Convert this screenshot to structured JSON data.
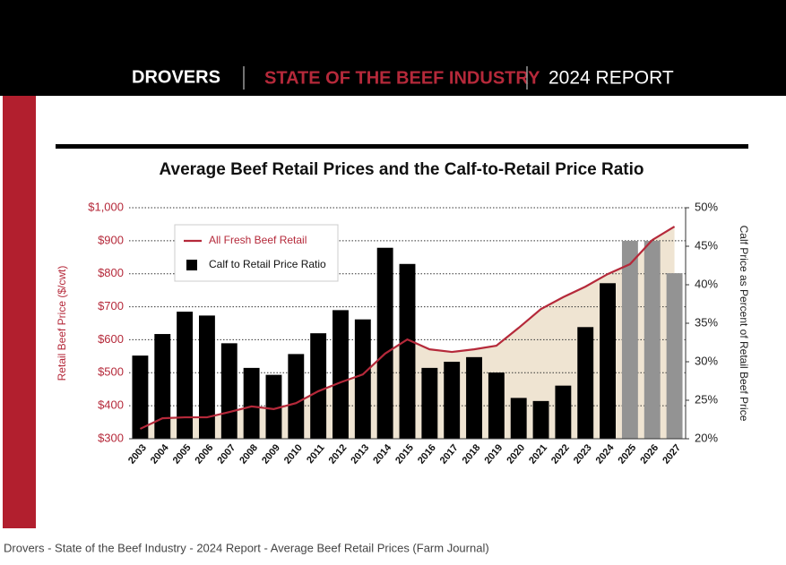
{
  "header": {
    "logo": "DROVERS",
    "section": "STATE OF THE BEEF INDUSTRY",
    "report": "2024 REPORT"
  },
  "caption": "Drovers - State of the Beef Industry - 2024 Report - Average Beef Retail Prices (Farm Journal)",
  "chart_data": {
    "type": "bar-line",
    "title": "Average Beef Retail Prices and the Calf-to-Retail Price Ratio",
    "y_label": "Retail Beef Price ($/cwt)",
    "y2_label": "Calf Price as Percent of Retail Beef Price",
    "categories": [
      "2003",
      "2004",
      "2005",
      "2006",
      "2007",
      "2008",
      "2009",
      "2010",
      "2011",
      "2012",
      "2013",
      "2014",
      "2015",
      "2016",
      "2017",
      "2018",
      "2019",
      "2020",
      "2021",
      "2022",
      "2023",
      "2024",
      "2025",
      "2026",
      "2027"
    ],
    "series": [
      {
        "name": "All Fresh Beef Retail",
        "type": "line",
        "axis": "y",
        "color": "#b5293a",
        "area_color": "#efe4d2",
        "values": [
          330,
          362,
          365,
          365,
          381,
          398,
          390,
          408,
          444,
          471,
          495,
          558,
          601,
          571,
          563,
          571,
          582,
          636,
          693,
          729,
          761,
          799,
          829,
          902,
          943
        ]
      },
      {
        "name": "Calf to Retail Price Ratio",
        "type": "bar",
        "axis": "y2",
        "color": "#000000",
        "colors": [
          "#000000",
          "#000000",
          "#000000",
          "#000000",
          "#000000",
          "#000000",
          "#000000",
          "#000000",
          "#000000",
          "#000000",
          "#000000",
          "#000000",
          "#000000",
          "#000000",
          "#000000",
          "#000000",
          "#000000",
          "#000000",
          "#000000",
          "#000000",
          "#000000",
          "#000000",
          "#939393",
          "#939393",
          "#939393"
        ],
        "values": [
          30.8,
          33.6,
          36.5,
          36.0,
          32.4,
          29.2,
          28.3,
          31.0,
          33.7,
          36.7,
          35.5,
          44.8,
          42.7,
          29.2,
          30.0,
          30.6,
          28.6,
          25.3,
          24.9,
          26.9,
          34.5,
          40.2,
          45.7,
          45.7,
          41.5
        ]
      }
    ],
    "ylim": [
      300,
      1000
    ],
    "yticks": [
      {
        "value": 300,
        "label": "$300"
      },
      {
        "value": 400,
        "label": "$400"
      },
      {
        "value": 500,
        "label": "$500"
      },
      {
        "value": 600,
        "label": "$600"
      },
      {
        "value": 700,
        "label": "$700"
      },
      {
        "value": 800,
        "label": "$800"
      },
      {
        "value": 900,
        "label": "$900"
      },
      {
        "value": 1000,
        "label": "$1,000"
      }
    ],
    "y2lim": [
      20,
      50
    ],
    "y2ticks": [
      {
        "value": 20,
        "label": "20%"
      },
      {
        "value": 25,
        "label": "25%"
      },
      {
        "value": 30,
        "label": "30%"
      },
      {
        "value": 35,
        "label": "35%"
      },
      {
        "value": 40,
        "label": "40%"
      },
      {
        "value": 45,
        "label": "45%"
      },
      {
        "value": 50,
        "label": "50%"
      }
    ],
    "grid": true,
    "legend": "upper left"
  }
}
